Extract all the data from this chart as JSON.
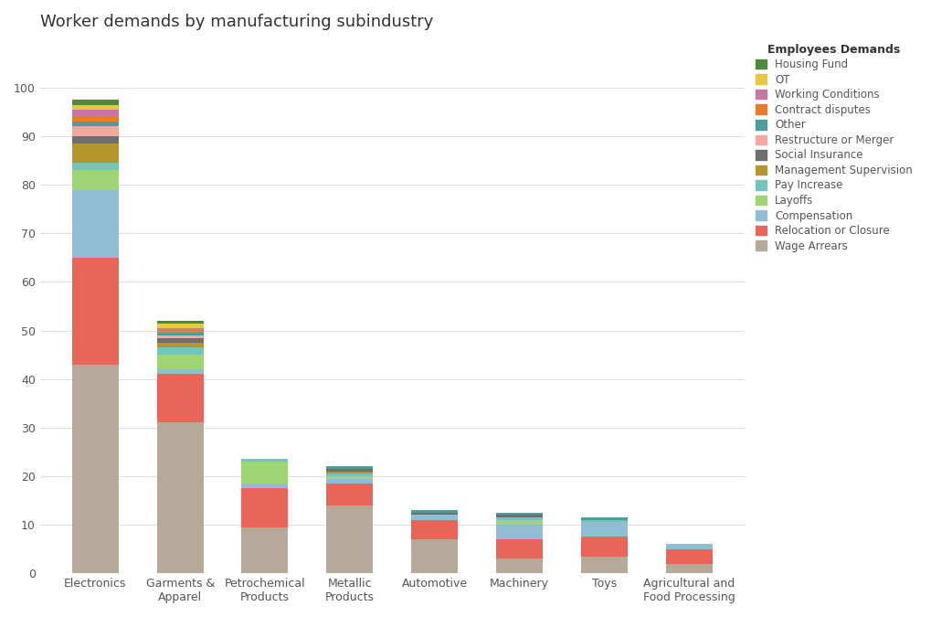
{
  "title": "Worker demands by manufacturing subindustry",
  "categories": [
    "Electronics",
    "Garments &\nApparel",
    "Petrochemical\nProducts",
    "Metallic\nProducts",
    "Automotive",
    "Machinery",
    "Toys",
    "Agricultural and\nFood Processing"
  ],
  "legend_title": "Employees Demands",
  "segments": [
    {
      "label": "Housing Fund",
      "color": "#4a8c3c",
      "values": [
        1,
        0.5,
        0,
        0,
        0,
        0,
        0,
        0
      ]
    },
    {
      "label": "OT",
      "color": "#e8c840",
      "values": [
        1,
        1,
        0,
        0,
        0,
        0,
        0,
        0
      ]
    },
    {
      "label": "Working Conditions",
      "color": "#c878a0",
      "values": [
        1.5,
        0.5,
        0,
        0,
        0,
        0,
        0,
        0
      ]
    },
    {
      "label": "Contract disputes",
      "color": "#e87c2a",
      "values": [
        1,
        0.5,
        0,
        0,
        0,
        0,
        0,
        0
      ]
    },
    {
      "label": "Other",
      "color": "#4a9e9e",
      "values": [
        1,
        0.5,
        0,
        0.5,
        0.5,
        0.5,
        0.5,
        0
      ]
    },
    {
      "label": "Restructure or Merger",
      "color": "#f5a8a0",
      "values": [
        2,
        0.5,
        0,
        0,
        0,
        0,
        0,
        0
      ]
    },
    {
      "label": "Social Insurance",
      "color": "#6e6e6e",
      "values": [
        1.5,
        1,
        0,
        0.5,
        0.5,
        0.5,
        0,
        0
      ]
    },
    {
      "label": "Management Supervision",
      "color": "#b5962a",
      "values": [
        4,
        1,
        0,
        0.5,
        0,
        0,
        0,
        0
      ]
    },
    {
      "label": "Pay Increase",
      "color": "#73c5bc",
      "values": [
        1.5,
        1.5,
        0.5,
        0.5,
        0,
        0.5,
        0.5,
        0
      ]
    },
    {
      "label": "Layoffs",
      "color": "#9fd473",
      "values": [
        4,
        3,
        4.5,
        0.5,
        0,
        1,
        0,
        0
      ]
    },
    {
      "label": "Compensation",
      "color": "#91bdd4",
      "values": [
        14,
        1,
        1,
        1,
        1,
        3,
        3,
        1
      ]
    },
    {
      "label": "Relocation or Closure",
      "color": "#e8655a",
      "values": [
        22,
        10,
        8,
        4.5,
        4,
        4,
        4,
        3
      ]
    },
    {
      "label": "Wage Arrears",
      "color": "#b5a99a",
      "values": [
        43,
        31,
        9.5,
        14,
        7,
        3,
        3.5,
        2
      ]
    }
  ],
  "ylim": [
    0,
    110
  ],
  "yticks": [
    0,
    10,
    20,
    30,
    40,
    50,
    60,
    70,
    80,
    90,
    100
  ],
  "background_color": "#ffffff",
  "grid_color": "#e0e0e0"
}
